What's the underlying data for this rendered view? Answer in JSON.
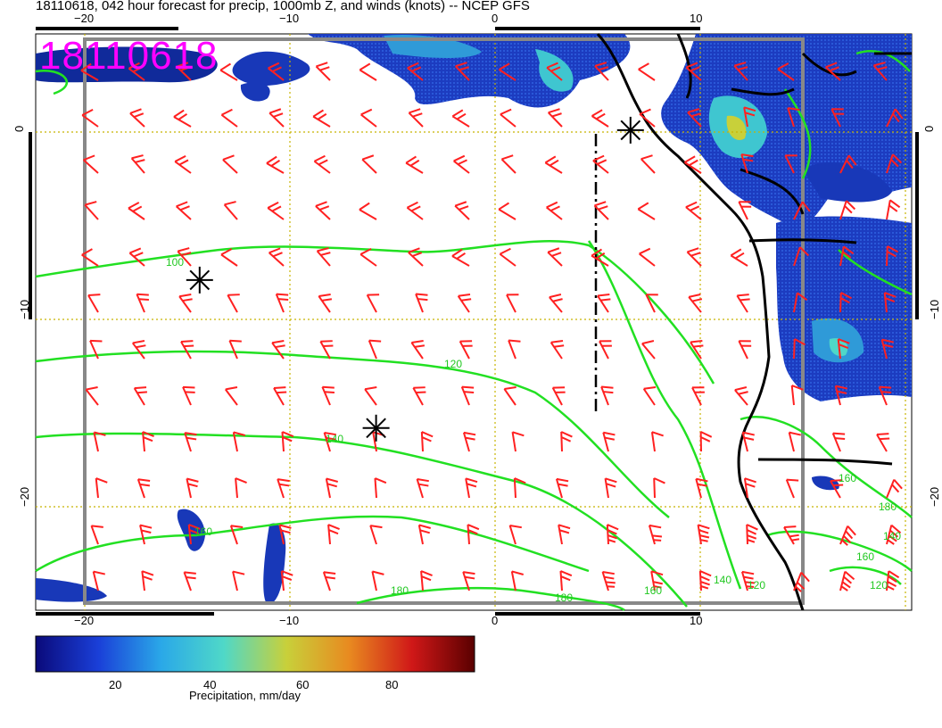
{
  "title": "18110618, 042 hour forecast for precip, 1000mb Z, and winds (knots) -- NCEP GFS",
  "stamp": "18110618",
  "colorbar": {
    "label": "Precipitation, mm/day",
    "ticks": [
      "20",
      "40",
      "60",
      "80"
    ],
    "colors": [
      "#0a0a7a",
      "#1a3fd8",
      "#2aa8e8",
      "#4fd8c8",
      "#c8d03a",
      "#e88a20",
      "#d01818",
      "#5a0000"
    ]
  },
  "axes": {
    "lon_ticks": [
      "−20",
      "−10",
      "0",
      "10"
    ],
    "lat_ticks": [
      "0",
      "−10",
      "−20"
    ]
  },
  "contour_labels": [
    "100",
    "120",
    "140",
    "160",
    "180",
    "180",
    "160",
    "140",
    "120",
    "180",
    "160",
    "140",
    "120",
    "160"
  ],
  "colors": {
    "contour": "#22e022",
    "barb": "#ff2020",
    "coast": "#000000",
    "grid": "#c8b400",
    "frame": "#888888",
    "stamp": "#ff00ff"
  },
  "chart_data": {
    "type": "map",
    "lon_range": [
      -22.5,
      20.5
    ],
    "lat_range": [
      5.5,
      -25.5
    ],
    "grid_lon": [
      -20,
      -10,
      0,
      10
    ],
    "grid_lat": [
      0,
      -10,
      -20
    ],
    "contour_levels": [
      100,
      120,
      140,
      160,
      180
    ],
    "markers": [
      {
        "symbol": "asterisk",
        "lon": -14.4,
        "lat": -7.9
      },
      {
        "symbol": "asterisk",
        "lon": -5.8,
        "lat": -15.8
      },
      {
        "symbol": "asterisk",
        "lon": 6.6,
        "lat": 0.1
      }
    ]
  }
}
